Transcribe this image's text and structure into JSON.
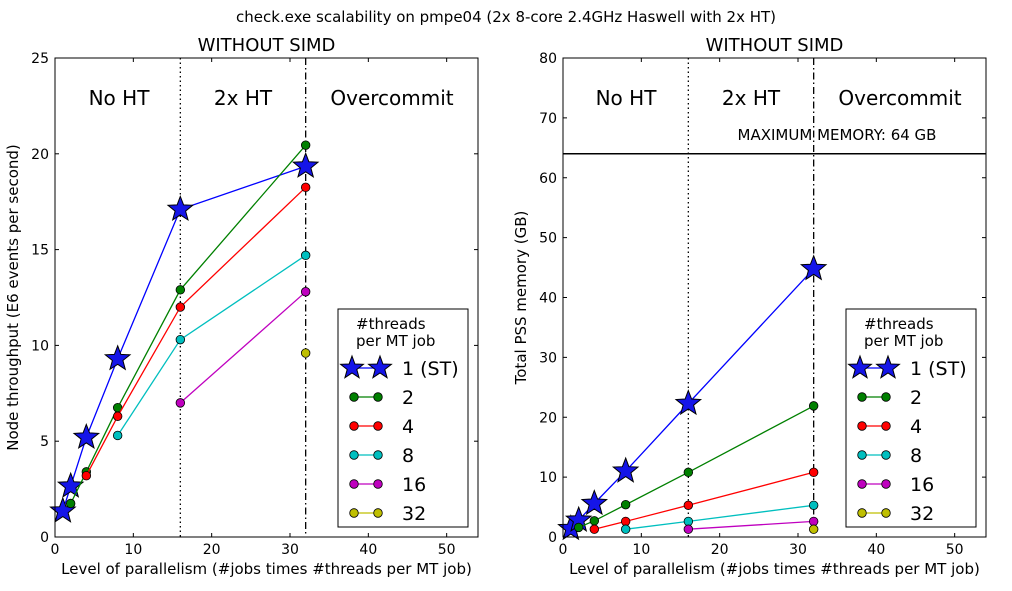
{
  "figure_title": "check.exe scalability on pmpe04 (2x 8-core 2.4GHz Haswell with 2x HT)",
  "colors": {
    "1": "#0000ff",
    "2": "#008000",
    "4": "#ff0000",
    "8": "#00bfbf",
    "16": "#bf00bf",
    "32": "#bfbf00",
    "star_fill": "#1515e8"
  },
  "chart_data": [
    {
      "type": "line",
      "title": "WITHOUT SIMD",
      "xlabel": "Level of parallelism (#jobs times #threads per MT job)",
      "ylabel": "Node throughput (E6 events per second)",
      "xlim": [
        0,
        54
      ],
      "ylim": [
        0,
        25
      ],
      "xticks": [
        "0",
        "10",
        "20",
        "30",
        "40",
        "50"
      ],
      "yticks": [
        "0",
        "5",
        "10",
        "15",
        "20",
        "25"
      ],
      "region_labels": [
        "No HT",
        "2x HT",
        "Overcommit"
      ],
      "legend_title": "#threads\n per MT job",
      "legend_position": "lower-right",
      "series": [
        {
          "name": "1 (ST)",
          "key": "1",
          "marker": "star",
          "x": [
            1,
            2,
            4,
            8,
            16,
            32
          ],
          "y": [
            1.35,
            2.65,
            5.2,
            9.3,
            17.1,
            19.35
          ]
        },
        {
          "name": "2",
          "key": "2",
          "marker": "circle",
          "x": [
            2,
            4,
            8,
            16,
            32
          ],
          "y": [
            1.75,
            3.4,
            6.75,
            12.9,
            20.45
          ]
        },
        {
          "name": "4",
          "key": "4",
          "marker": "circle",
          "x": [
            4,
            8,
            16,
            32
          ],
          "y": [
            3.2,
            6.3,
            12.0,
            18.25
          ]
        },
        {
          "name": "8",
          "key": "8",
          "marker": "circle",
          "x": [
            8,
            16,
            32
          ],
          "y": [
            5.3,
            10.3,
            14.7
          ]
        },
        {
          "name": "16",
          "key": "16",
          "marker": "circle",
          "x": [
            16,
            32
          ],
          "y": [
            7.0,
            12.8
          ]
        },
        {
          "name": "32",
          "key": "32",
          "marker": "circle",
          "x": [
            32
          ],
          "y": [
            9.6
          ]
        }
      ]
    },
    {
      "type": "line",
      "title": "WITHOUT SIMD",
      "xlabel": "Level of parallelism (#jobs times #threads per MT job)",
      "ylabel": "Total PSS memory (GB)",
      "xlim": [
        0,
        54
      ],
      "ylim": [
        0,
        80
      ],
      "xticks": [
        "0",
        "10",
        "20",
        "30",
        "40",
        "50"
      ],
      "yticks": [
        "0",
        "10",
        "20",
        "30",
        "40",
        "50",
        "60",
        "70",
        "80"
      ],
      "region_labels": [
        "No HT",
        "2x HT",
        "Overcommit"
      ],
      "max_memory": {
        "label": "MAXIMUM MEMORY: 64 GB",
        "value": 64
      },
      "legend_title": "#threads\n per MT job",
      "legend_position": "lower-right",
      "series": [
        {
          "name": "1 (ST)",
          "key": "1",
          "marker": "star",
          "x": [
            1,
            2,
            4,
            8,
            16,
            32
          ],
          "y": [
            1.4,
            2.8,
            5.6,
            11.0,
            22.3,
            44.8
          ]
        },
        {
          "name": "2",
          "key": "2",
          "marker": "circle",
          "x": [
            2,
            4,
            8,
            16,
            32
          ],
          "y": [
            1.6,
            2.7,
            5.4,
            10.8,
            21.9
          ]
        },
        {
          "name": "4",
          "key": "4",
          "marker": "circle",
          "x": [
            4,
            8,
            16,
            32
          ],
          "y": [
            1.3,
            2.6,
            5.3,
            10.8
          ]
        },
        {
          "name": "8",
          "key": "8",
          "marker": "circle",
          "x": [
            8,
            16,
            32
          ],
          "y": [
            1.3,
            2.6,
            5.3
          ]
        },
        {
          "name": "16",
          "key": "16",
          "marker": "circle",
          "x": [
            16,
            32
          ],
          "y": [
            1.3,
            2.6
          ]
        },
        {
          "name": "32",
          "key": "32",
          "marker": "circle",
          "x": [
            32
          ],
          "y": [
            1.3
          ]
        }
      ]
    }
  ]
}
